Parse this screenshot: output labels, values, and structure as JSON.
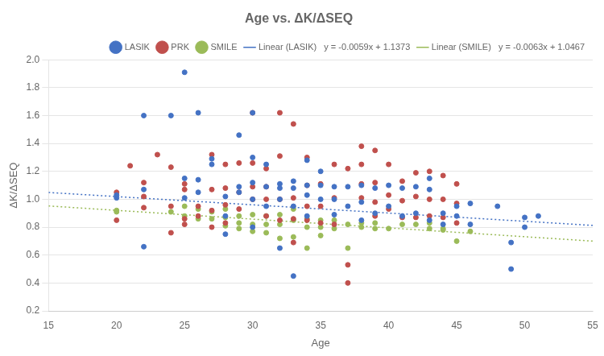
{
  "chart_data": {
    "type": "scatter",
    "title": "Age vs. ΔK/ΔSEQ",
    "xlabel": "Age",
    "ylabel": "ΔK/ΔSEQ",
    "xlim": [
      15,
      55
    ],
    "ylim": [
      0.2,
      2.0
    ],
    "xticks": [
      15,
      20,
      25,
      30,
      35,
      40,
      45,
      50,
      55
    ],
    "yticks": [
      0.2,
      0.4,
      0.6,
      0.8,
      {
        "value": 1.0,
        "label": "1.0"
      },
      1.2,
      1.4,
      1.6,
      1.8,
      {
        "value": 2.0,
        "label": "2.0"
      }
    ],
    "grid": "y",
    "legend": "upper right",
    "series": [
      {
        "name": "LASIK",
        "type": "scatter",
        "marker": "circle",
        "color": "#4472C4",
        "x": [
          20,
          20,
          22,
          22,
          22,
          24,
          25,
          25,
          25,
          26,
          26,
          26,
          27,
          27,
          28,
          28,
          28,
          29,
          29,
          29,
          30,
          30,
          30,
          30,
          30,
          31,
          31,
          31,
          32,
          32,
          32,
          32,
          33,
          33,
          33,
          33,
          34,
          34,
          34,
          34,
          35,
          35,
          35,
          36,
          36,
          36,
          37,
          37,
          38,
          38,
          38,
          39,
          39,
          40,
          40,
          41,
          41,
          42,
          42,
          43,
          43,
          43,
          44,
          44,
          45,
          45,
          46,
          46,
          48,
          49,
          49,
          50,
          50,
          51
        ],
        "values": [
          1.01,
          1.03,
          1.6,
          0.66,
          1.07,
          1.6,
          1.91,
          1.15,
          1.01,
          1.62,
          1.14,
          1.05,
          1.29,
          1.25,
          1.02,
          0.88,
          0.75,
          1.46,
          1.09,
          1.05,
          1.62,
          1.3,
          1.12,
          1.0,
          0.8,
          1.25,
          1.09,
          0.95,
          1.11,
          1.08,
          1.0,
          0.65,
          1.13,
          1.08,
          0.95,
          0.45,
          1.28,
          1.1,
          1.03,
          0.88,
          1.2,
          1.1,
          1.0,
          1.09,
          1.0,
          0.89,
          1.09,
          0.95,
          1.1,
          0.98,
          0.85,
          1.08,
          0.9,
          1.1,
          0.95,
          1.08,
          0.88,
          1.09,
          0.9,
          1.15,
          1.07,
          0.85,
          0.9,
          0.82,
          0.95,
          0.88,
          0.97,
          0.82,
          0.95,
          0.69,
          0.5,
          0.87,
          0.8,
          0.88
        ]
      },
      {
        "name": "PRK",
        "type": "scatter",
        "marker": "circle",
        "color": "#C0504D",
        "x": [
          20,
          20,
          21,
          22,
          22,
          22,
          23,
          24,
          24,
          24,
          25,
          25,
          25,
          25,
          26,
          26,
          27,
          27,
          27,
          27,
          28,
          28,
          28,
          28,
          29,
          29,
          29,
          30,
          30,
          30,
          30,
          31,
          31,
          31,
          31,
          32,
          32,
          32,
          32,
          33,
          33,
          33,
          33,
          34,
          34,
          34,
          34,
          35,
          35,
          35,
          36,
          36,
          36,
          37,
          37,
          37,
          38,
          38,
          38,
          38,
          39,
          39,
          39,
          39,
          40,
          40,
          40,
          41,
          41,
          41,
          42,
          42,
          42,
          43,
          43,
          43,
          44,
          44,
          44,
          45,
          45,
          45
        ],
        "values": [
          0.85,
          1.05,
          1.24,
          0.94,
          1.02,
          1.12,
          1.32,
          0.76,
          0.95,
          1.23,
          0.82,
          0.86,
          1.07,
          1.11,
          0.88,
          0.95,
          0.8,
          0.92,
          1.07,
          1.32,
          0.83,
          0.96,
          1.08,
          1.25,
          0.93,
          1.05,
          1.26,
          1.0,
          1.09,
          1.26,
          1.62,
          0.88,
          1.0,
          1.09,
          1.22,
          0.85,
          1.0,
          1.62,
          1.31,
          0.69,
          0.86,
          1.01,
          1.54,
          0.85,
          0.95,
          1.1,
          1.3,
          0.83,
          0.95,
          1.11,
          0.82,
          1.01,
          1.25,
          0.4,
          0.53,
          1.22,
          1.01,
          1.11,
          1.25,
          1.38,
          0.88,
          0.98,
          1.12,
          1.35,
          0.93,
          1.03,
          1.25,
          0.87,
          0.99,
          1.13,
          0.87,
          1.02,
          1.19,
          0.88,
          1.0,
          1.2,
          0.87,
          1.0,
          1.17,
          0.83,
          0.97,
          1.11
        ]
      },
      {
        "name": "SMILE",
        "type": "scatter",
        "marker": "circle",
        "color": "#9BBB59",
        "x": [
          20,
          20,
          24,
          25,
          25,
          26,
          26,
          27,
          27,
          28,
          28,
          28,
          29,
          29,
          29,
          30,
          30,
          30,
          31,
          31,
          31,
          32,
          32,
          32,
          33,
          33,
          33,
          34,
          34,
          34,
          35,
          35,
          35,
          36,
          36,
          37,
          37,
          38,
          38,
          39,
          39,
          40,
          41,
          42,
          43,
          43,
          44,
          44,
          45,
          46
        ],
        "values": [
          0.92,
          0.91,
          0.91,
          0.95,
          0.88,
          0.93,
          0.86,
          0.91,
          0.86,
          0.93,
          0.87,
          0.81,
          0.88,
          0.83,
          0.79,
          0.89,
          0.82,
          0.77,
          0.88,
          0.82,
          0.76,
          0.89,
          0.82,
          0.72,
          0.93,
          0.85,
          0.73,
          0.86,
          0.8,
          0.65,
          0.85,
          0.8,
          0.74,
          0.85,
          0.79,
          0.82,
          0.65,
          0.83,
          0.8,
          0.83,
          0.79,
          0.79,
          0.82,
          0.82,
          0.83,
          0.79,
          0.78,
          0.79,
          0.7,
          0.77
        ]
      },
      {
        "name": "Linear (LASIK)   y = -0.0059x + 1.1373",
        "type": "line",
        "line_style": "dotted",
        "color": "#4472C4",
        "x": [
          15,
          55
        ],
        "values": [
          1.0488,
          0.8128
        ]
      },
      {
        "name": "Linear (SMILE)   y = -0.0063x + 1.0467",
        "type": "line",
        "line_style": "dotted",
        "color": "#9BBB59",
        "x": [
          15,
          55
        ],
        "values": [
          0.9522,
          0.7002
        ]
      }
    ]
  }
}
